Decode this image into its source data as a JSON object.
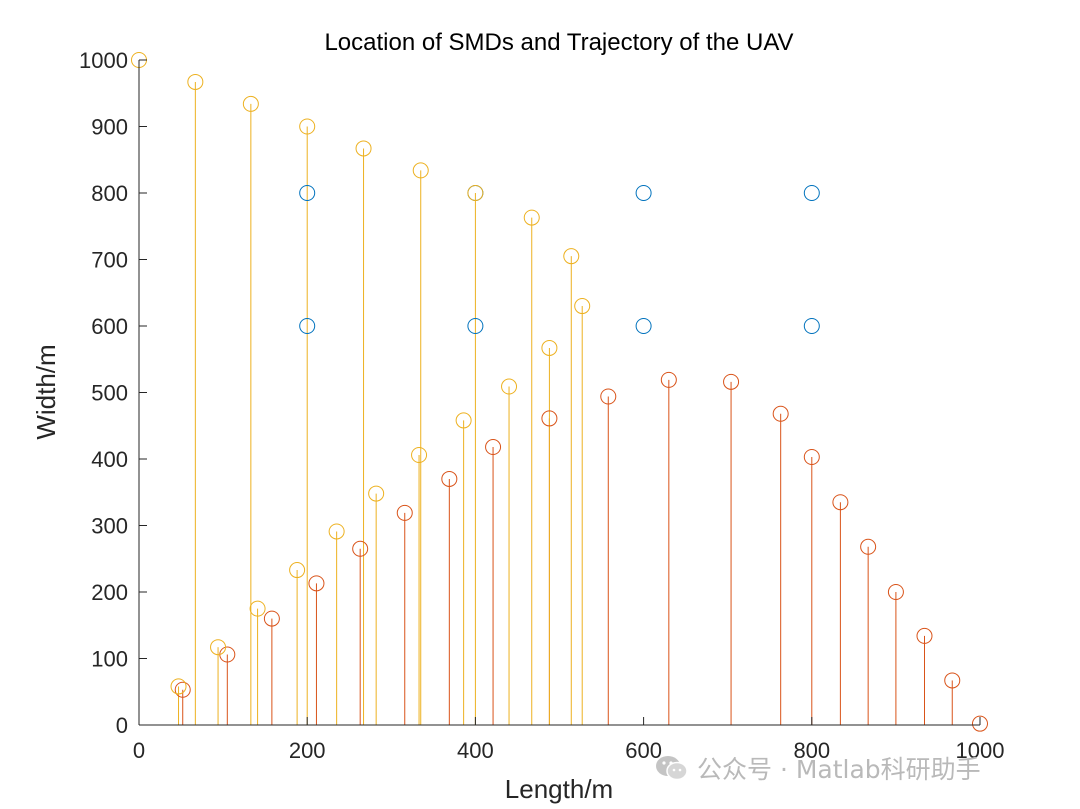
{
  "watermark": "公众号 · Matlab科研助手",
  "chart_data": {
    "type": "scatter",
    "title": "Location of SMDs and Trajectory of the UAV",
    "xlabel": "Length/m",
    "ylabel": "Width/m",
    "xlim": [
      0,
      1000
    ],
    "ylim": [
      0,
      1000
    ],
    "xticks": [
      0,
      200,
      400,
      600,
      800,
      1000
    ],
    "yticks": [
      0,
      100,
      200,
      300,
      400,
      500,
      600,
      700,
      800,
      900,
      1000
    ],
    "grid": false,
    "series": [
      {
        "color": "#0072BD",
        "style": "scatter",
        "x": [
          200,
          400,
          600,
          800,
          200,
          400,
          600,
          800
        ],
        "y": [
          800,
          800,
          800,
          800,
          600,
          600,
          600,
          600
        ]
      },
      {
        "color": "#D95319",
        "style": "stem",
        "x": [
          52,
          105,
          158,
          211,
          263,
          316,
          369,
          421,
          488,
          558,
          630,
          704,
          763,
          800,
          834,
          867,
          900,
          934,
          967,
          1000
        ],
        "y": [
          53,
          106,
          160,
          213,
          265,
          319,
          370,
          418,
          461,
          494,
          519,
          516,
          468,
          403,
          335,
          268,
          200,
          134,
          67,
          2
        ]
      },
      {
        "color": "#EDB120",
        "style": "stem",
        "x": [
          0,
          47,
          67,
          94,
          133,
          141,
          188,
          200,
          235,
          267,
          282,
          333,
          335,
          386,
          400,
          440,
          467,
          488,
          514,
          527
        ],
        "y": [
          1000,
          58,
          967,
          117,
          934,
          175,
          233,
          900,
          291,
          867,
          348,
          406,
          834,
          458,
          800,
          509,
          763,
          567,
          705,
          630
        ]
      }
    ]
  }
}
